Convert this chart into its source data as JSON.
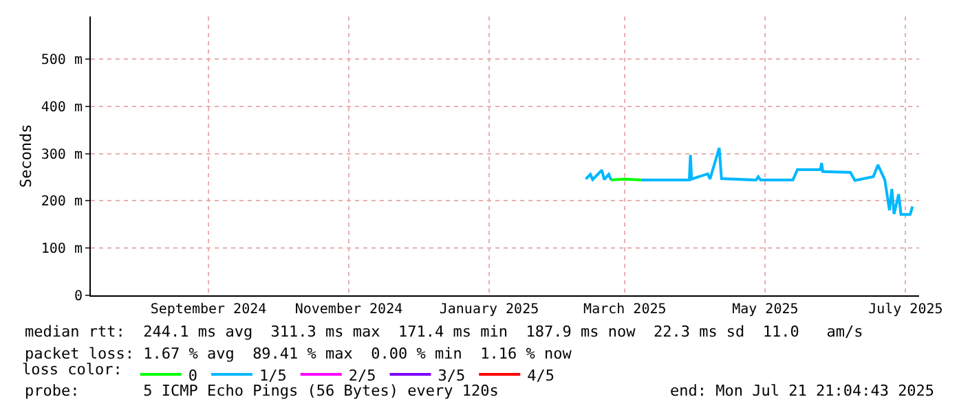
{
  "chart_data": {
    "type": "line",
    "ylabel": "Seconds",
    "ylim": [
      0,
      590
    ],
    "yticks": [
      0,
      {
        "value": 100,
        "label": "100 m"
      },
      {
        "value": 200,
        "label": "200 m"
      },
      {
        "value": 300,
        "label": "300 m"
      },
      {
        "value": 400,
        "label": "400 m"
      },
      {
        "value": 500,
        "label": "500 m"
      }
    ],
    "xlim": [
      "2024-07-26T21:04",
      "2025-07-21T21:04"
    ],
    "xticks": [
      {
        "value": "2024-09-16",
        "label": "September 2024"
      },
      {
        "value": "2024-11-16",
        "label": "November 2024"
      },
      {
        "value": "2025-01-16",
        "label": "January 2025"
      },
      {
        "value": "2025-03-16",
        "label": "March 2025"
      },
      {
        "value": "2025-05-16",
        "label": "May 2025"
      },
      {
        "value": "2025-07-16",
        "label": "July 2025"
      }
    ],
    "grid": true,
    "legend": "bottom",
    "legend_title": "loss color:",
    "series": [
      {
        "name": "0",
        "color": "#00ff00",
        "x": [
          "2025-03-10",
          "2025-03-16",
          "2025-03-23"
        ],
        "values": [
          244,
          246,
          244
        ]
      },
      {
        "name": "1/5",
        "color": "#00b8ff",
        "x": [
          "2025-02-27",
          "2025-03-01",
          "2025-03-02",
          "2025-03-06",
          "2025-03-07",
          "2025-03-09",
          "2025-03-10",
          "2025-03-16",
          "2025-03-23",
          "2025-04-13",
          "2025-04-13T12:00",
          "2025-04-14",
          "2025-04-21",
          "2025-04-22",
          "2025-04-26",
          "2025-04-27",
          "2025-05-12",
          "2025-05-13",
          "2025-05-14",
          "2025-05-28",
          "2025-05-30",
          "2025-06-09",
          "2025-06-09T12:00",
          "2025-06-10",
          "2025-06-22",
          "2025-06-24",
          "2025-07-02",
          "2025-07-04",
          "2025-07-07",
          "2025-07-09",
          "2025-07-10",
          "2025-07-11",
          "2025-07-13",
          "2025-07-14",
          "2025-07-18",
          "2025-07-19"
        ],
        "values": [
          246,
          256,
          245,
          265,
          245,
          256,
          244,
          null,
          244,
          244,
          297,
          246,
          257,
          246,
          312,
          247,
          244,
          251,
          244,
          244,
          266,
          266,
          280,
          262,
          260,
          243,
          251,
          276,
          244,
          180,
          225,
          172,
          214,
          171,
          171,
          188
        ]
      },
      {
        "name": "2/5",
        "color": "#ff00ff"
      },
      {
        "name": "3/5",
        "color": "#7e00ff"
      },
      {
        "name": "4/5",
        "color": "#ff0000"
      }
    ],
    "annotations": [
      "median rtt:  244.1 ms avg  311.3 ms max  171.4 ms min  187.9 ms now  22.3 ms sd  11.0   am/s",
      "packet loss: 1.67 % avg  89.41 % max  0.00 % min  1.16 % now",
      "probe:       5 ICMP Echo Pings (56 Bytes) every 120s",
      "end: Mon Jul 21 21:04:43 2025"
    ]
  }
}
